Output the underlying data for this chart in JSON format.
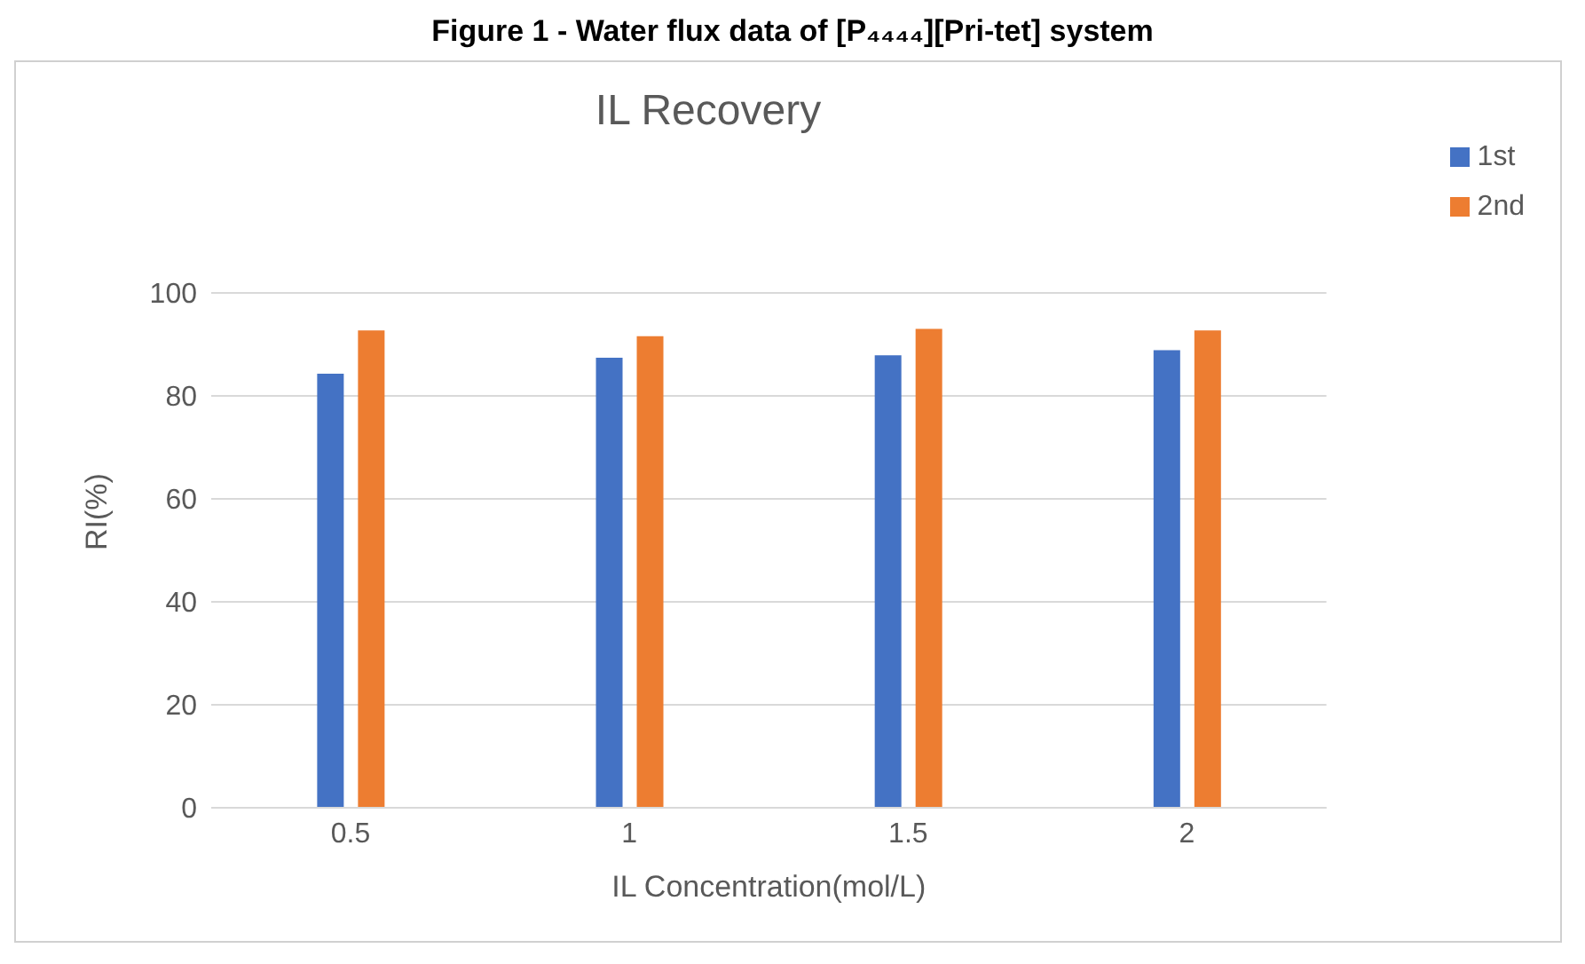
{
  "chart_data": {
    "type": "bar",
    "title": "IL Recovery",
    "xlabel": "IL Concentration(mol/L)",
    "ylabel": "RI(%)",
    "annotations": [
      "Figure 1 - Water flux data of [P₄₄₄₄][Pri-tet] system"
    ],
    "categories": [
      "0.5",
      "1",
      "1.5",
      "2"
    ],
    "series": [
      {
        "name": "1st",
        "color": "#4472c4",
        "values": [
          84.3,
          87.4,
          87.9,
          88.9
        ]
      },
      {
        "name": "2nd",
        "color": "#ed7d31",
        "values": [
          92.7,
          91.6,
          93.0,
          92.7
        ]
      }
    ],
    "ylim": [
      0,
      100
    ],
    "yticks": [
      0,
      20,
      40,
      60,
      80,
      100
    ],
    "grid": "y",
    "legend": "top right"
  }
}
